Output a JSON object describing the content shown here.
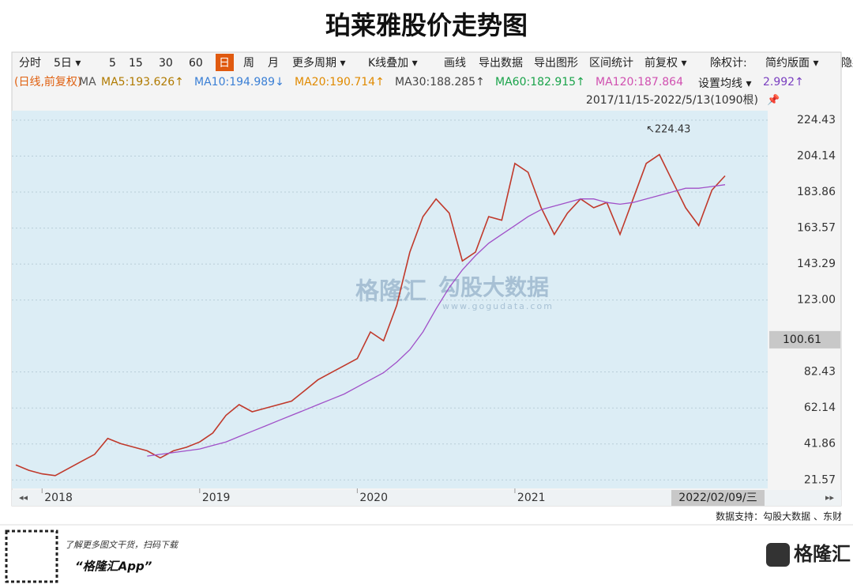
{
  "title": "珀莱雅股价走势图",
  "toolbar": [
    "分时",
    "5日 ▾",
    "5",
    "15",
    "30",
    "60",
    "日",
    "周",
    "月",
    "更多周期 ▾",
    "K线叠加 ▾",
    "画线",
    "导出数据",
    "导出图形",
    "区间统计",
    "前复权 ▾",
    "除权计:",
    "简约版面 ▾",
    "隐藏"
  ],
  "legend": [
    {
      "text": "(日线,前复权)",
      "color": "#e06010"
    },
    {
      "text": "MA",
      "color": "#555555"
    },
    {
      "text": "MA5:193.626↑",
      "color": "#b07a00"
    },
    {
      "text": "MA10:194.989↓",
      "color": "#3a7fd5"
    },
    {
      "text": "MA20:190.714↑",
      "color": "#e08a00"
    },
    {
      "text": "MA30:188.285↑",
      "color": "#444444"
    },
    {
      "text": "MA60:182.915↑",
      "color": "#1aa34a"
    },
    {
      "text": "MA120:187.864",
      "color": "#d050b0"
    },
    {
      "text": "设置均线 ▾",
      "color": "#222222"
    },
    {
      "text": "2.992↑",
      "color": "#7a3fc0"
    }
  ],
  "date_range": "2017/11/15-2022/5/13(1090根)",
  "watermark": {
    "brand": "格隆汇",
    "name": "勾股大数据",
    "url": "www.gogudata.com"
  },
  "source": "数据支持：勾股大数据 、东财",
  "footer": {
    "note": "了解更多图文干货，扫码下载",
    "app": "“格隆汇App”",
    "logo": "格隆汇"
  },
  "chart_data": {
    "type": "line",
    "categories": [
      null,
      null,
      "2018",
      null,
      null,
      null,
      null,
      null,
      null,
      null,
      null,
      null,
      null,
      null,
      "2019",
      null,
      null,
      null,
      null,
      null,
      null,
      null,
      null,
      null,
      null,
      null,
      "2020",
      null,
      null,
      null,
      null,
      null,
      null,
      null,
      null,
      null,
      null,
      null,
      "2021",
      null,
      null,
      null,
      null,
      null,
      null,
      null,
      null,
      null,
      null,
      null,
      null,
      null,
      null,
      null,
      null
    ],
    "series": [
      {
        "name": "日线",
        "color": "#c0392b",
        "values": [
          30,
          27,
          25,
          24,
          28,
          32,
          36,
          45,
          42,
          40,
          38,
          34,
          38,
          40,
          43,
          48,
          58,
          64,
          60,
          62,
          64,
          66,
          72,
          78,
          82,
          86,
          90,
          105,
          100,
          120,
          150,
          170,
          180,
          172,
          145,
          150,
          170,
          168,
          200,
          195,
          175,
          160,
          172,
          180,
          175,
          178,
          160,
          180,
          200,
          205,
          190,
          175,
          165,
          185,
          193
        ]
      },
      {
        "name": "MA120",
        "color": "#a050c8",
        "values": [
          null,
          null,
          null,
          null,
          null,
          null,
          null,
          null,
          null,
          null,
          35,
          36,
          37,
          38,
          39,
          41,
          43,
          46,
          49,
          52,
          55,
          58,
          61,
          64,
          67,
          70,
          74,
          78,
          82,
          88,
          95,
          105,
          118,
          130,
          140,
          148,
          155,
          160,
          165,
          170,
          174,
          176,
          178,
          180,
          180,
          178,
          177,
          178,
          180,
          182,
          184,
          186,
          186,
          187,
          188
        ]
      }
    ],
    "ylim": [
      15,
      232
    ],
    "yticks": [
      21.57,
      41.86,
      62.14,
      82.43,
      {
        "value": 123,
        "label": "123.00"
      },
      143.29,
      163.57,
      183.86,
      204.14,
      224.43
    ],
    "grid": true,
    "cursor_value": 100.61,
    "cursor_date": "2022/02/09/三",
    "high_label": "↖224.43"
  }
}
